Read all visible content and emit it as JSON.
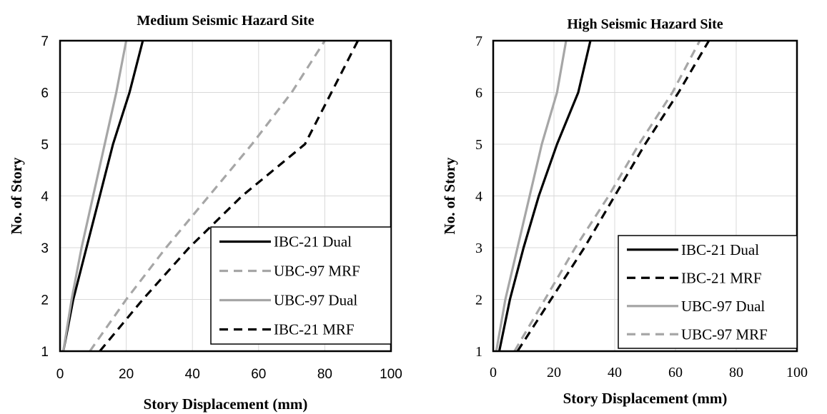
{
  "chart_data": [
    {
      "type": "line",
      "title": "Medium Seismic Hazard Site",
      "xlabel": "Story Displacement (mm)",
      "ylabel": "No. of Story",
      "xlim": [
        0,
        100
      ],
      "ylim": [
        1,
        7
      ],
      "xticks": [
        "0",
        "20",
        "40",
        "60",
        "80",
        "100"
      ],
      "yticks": [
        "1",
        "2",
        "3",
        "4",
        "5",
        "6",
        "7"
      ],
      "grid": true,
      "legend_position": "bottom-right",
      "y": [
        1,
        2,
        3,
        4,
        5,
        6,
        7
      ],
      "series": [
        {
          "name": "IBC-21 Dual",
          "color": "#000000",
          "dash": "solid",
          "x": [
            1,
            4,
            8,
            12,
            16,
            21,
            25
          ]
        },
        {
          "name": "UBC-97 MRF",
          "color": "#a6a6a6",
          "dash": "dashed",
          "x": [
            9,
            20,
            32,
            45,
            58,
            70,
            80
          ]
        },
        {
          "name": "UBC-97 Dual",
          "color": "#a6a6a6",
          "dash": "solid",
          "x": [
            1,
            3.5,
            6.5,
            10,
            13.5,
            17,
            20
          ]
        },
        {
          "name": "IBC-21 MRF",
          "color": "#000000",
          "dash": "dashed",
          "x": [
            12,
            25,
            39,
            55,
            74,
            82,
            90
          ]
        }
      ]
    },
    {
      "type": "line",
      "title": "High Seismic Hazard Site",
      "xlabel": "Story Displacement (mm)",
      "ylabel": "No. of Story",
      "xlim": [
        0,
        100
      ],
      "ylim": [
        1,
        7
      ],
      "xticks": [
        "0",
        "20",
        "40",
        "60",
        "80",
        "100"
      ],
      "yticks": [
        "1",
        "2",
        "3",
        "4",
        "5",
        "6",
        "7"
      ],
      "grid": true,
      "legend_position": "bottom-right",
      "y": [
        1,
        2,
        3,
        4,
        5,
        6,
        7
      ],
      "series": [
        {
          "name": "IBC-21 Dual",
          "color": "#000000",
          "dash": "solid",
          "x": [
            2,
            5.5,
            10,
            15,
            21,
            28,
            32
          ]
        },
        {
          "name": "IBC-21 MRF",
          "color": "#000000",
          "dash": "dashed",
          "x": [
            8,
            19,
            30,
            40,
            50,
            61,
            71
          ]
        },
        {
          "name": "UBC-97 Dual",
          "color": "#a6a6a6",
          "dash": "solid",
          "x": [
            1,
            4,
            8,
            12,
            16,
            21,
            24
          ]
        },
        {
          "name": "UBC-97 MRF",
          "color": "#a6a6a6",
          "dash": "dashed",
          "x": [
            7,
            17,
            27,
            38,
            48,
            59,
            68
          ]
        }
      ]
    }
  ]
}
